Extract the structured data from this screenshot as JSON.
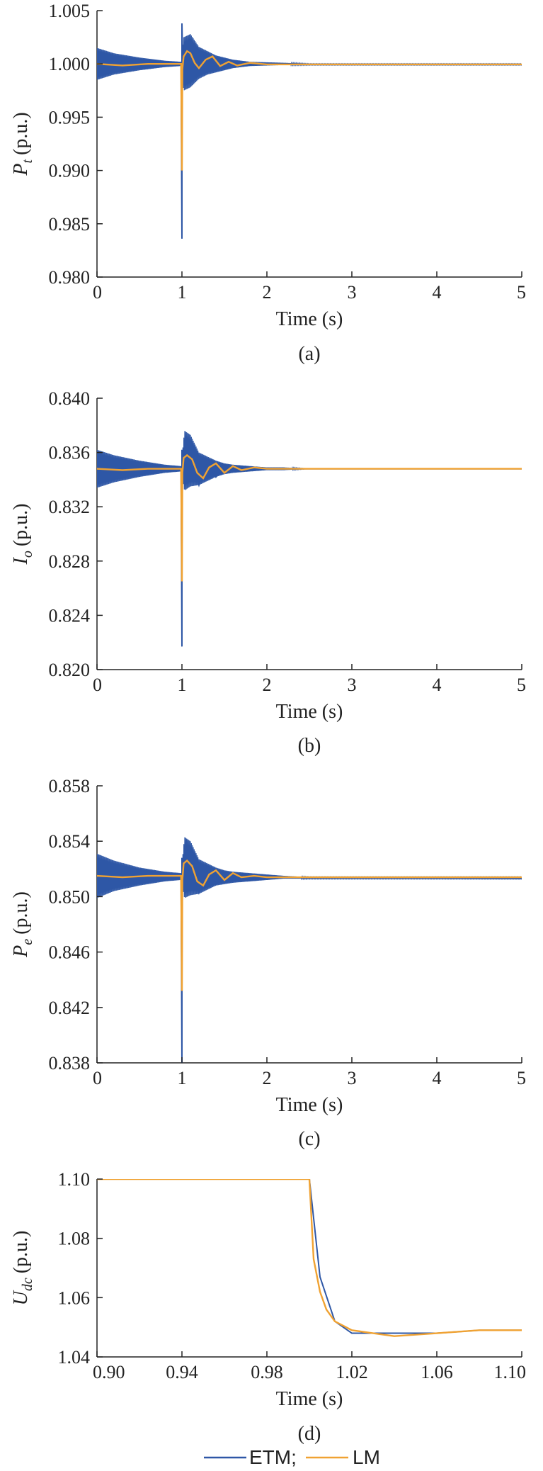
{
  "colors": {
    "etm": "#2E57A6",
    "lm": "#F0A232"
  },
  "legend": {
    "items": [
      {
        "label": "ETM;",
        "color": "#2E57A6"
      },
      {
        "label": "LM",
        "color": "#F0A232"
      }
    ]
  },
  "chart_data": [
    {
      "type": "line",
      "caption": "(a)",
      "xlabel": "Time (s)",
      "ylabel_symbol": "P",
      "ylabel_subscript": "t",
      "ylabel_unit": "(p.u.)",
      "xlim": [
        0,
        5
      ],
      "ylim": [
        0.98,
        1.005
      ],
      "xticks": [
        "0",
        "1",
        "2",
        "3",
        "4",
        "5"
      ],
      "yticks": [
        "0.980",
        "0.985",
        "0.990",
        "0.995",
        "1.000",
        "1.005"
      ],
      "grid": false,
      "series": [
        {
          "name": "ETM",
          "x": [
            0,
            0.2,
            0.5,
            0.8,
            0.99,
            1.0,
            1.0,
            1.01,
            1.04,
            1.1,
            1.2,
            1.3,
            1.4,
            1.5,
            1.6,
            1.7,
            1.8,
            2.0,
            2.5,
            3.0,
            5.0
          ],
          "y": [
            1.0,
            1.0,
            0.99985,
            0.9999,
            0.99995,
            0.9836,
            1.0038,
            0.9995,
            1.0003,
            1.0007,
            0.9995,
            1.0004,
            0.9998,
            1.0001,
            0.99985,
            1.00005,
            0.99995,
            1.0,
            0.99995,
            0.99995,
            0.99995
          ],
          "envelope_x": [
            0,
            0.2,
            0.5,
            0.8,
            0.99,
            1.02,
            1.1,
            1.2,
            1.3,
            1.4,
            1.5,
            1.6,
            1.8,
            2.0,
            2.2,
            2.5,
            5.0
          ],
          "envelope_upper": [
            1.0015,
            1.001,
            1.0006,
            1.0003,
            1.0002,
            1.0025,
            1.0028,
            1.0016,
            1.0012,
            1.0008,
            1.0006,
            1.0004,
            1.0002,
            1.00015,
            1.0001,
            1.0,
            1.0
          ],
          "envelope_lower": [
            0.9985,
            0.999,
            0.9994,
            0.9997,
            0.9998,
            0.9975,
            0.9978,
            0.9986,
            0.999,
            0.9992,
            0.9994,
            0.9996,
            0.9998,
            0.99985,
            0.9999,
            0.9999,
            0.9999
          ]
        },
        {
          "name": "LM",
          "x": [
            0,
            0.3,
            0.6,
            0.99,
            1.0,
            1.005,
            1.02,
            1.06,
            1.1,
            1.15,
            1.2,
            1.28,
            1.36,
            1.45,
            1.55,
            1.65,
            1.8,
            2.0,
            2.5,
            5.0
          ],
          "y": [
            1.0,
            0.99985,
            1.0,
            1.0,
            0.99,
            0.9995,
            1.0007,
            1.0012,
            1.001,
            1.0001,
            0.9996,
            1.0004,
            1.0007,
            0.9998,
            1.0002,
            0.99985,
            1.0001,
            0.99995,
            0.99995,
            0.99995
          ]
        }
      ]
    },
    {
      "type": "line",
      "caption": "(b)",
      "xlabel": "Time (s)",
      "ylabel_symbol": "I",
      "ylabel_subscript": "o",
      "ylabel_unit": "(p.u.)",
      "xlim": [
        0,
        5
      ],
      "ylim": [
        0.82,
        0.84
      ],
      "xticks": [
        "0",
        "1",
        "2",
        "3",
        "4",
        "5"
      ],
      "yticks": [
        "0.820",
        "0.824",
        "0.828",
        "0.832",
        "0.836",
        "0.840"
      ],
      "grid": false,
      "series": [
        {
          "name": "ETM",
          "x": [
            0,
            0.3,
            0.6,
            0.99,
            1.0,
            1.0,
            1.01,
            1.05,
            1.1,
            1.2,
            1.3,
            1.4,
            1.5,
            1.6,
            1.8,
            2.0,
            2.5,
            5.0
          ],
          "y": [
            0.8348,
            0.8347,
            0.8348,
            0.8348,
            0.8217,
            0.8362,
            0.8347,
            0.8372,
            0.8355,
            0.8336,
            0.8355,
            0.8342,
            0.835,
            0.8346,
            0.8349,
            0.8348,
            0.8348,
            0.8348
          ],
          "envelope_x": [
            0,
            0.2,
            0.5,
            0.8,
            0.99,
            1.03,
            1.1,
            1.2,
            1.3,
            1.4,
            1.5,
            1.6,
            1.8,
            2.0,
            2.2,
            2.5,
            5.0
          ],
          "envelope_upper": [
            0.8362,
            0.8358,
            0.8354,
            0.8351,
            0.835,
            0.8376,
            0.8373,
            0.836,
            0.8357,
            0.8354,
            0.8352,
            0.8351,
            0.835,
            0.8349,
            0.8349,
            0.8348,
            0.8348
          ],
          "envelope_lower": [
            0.8334,
            0.8338,
            0.8342,
            0.8345,
            0.8346,
            0.8332,
            0.8335,
            0.8336,
            0.8339,
            0.8342,
            0.8344,
            0.8345,
            0.8346,
            0.8347,
            0.8347,
            0.8348,
            0.8348
          ]
        },
        {
          "name": "LM",
          "x": [
            0,
            0.3,
            0.6,
            0.99,
            1.0,
            1.005,
            1.02,
            1.06,
            1.12,
            1.18,
            1.25,
            1.32,
            1.4,
            1.5,
            1.6,
            1.7,
            1.85,
            2.0,
            5.0
          ],
          "y": [
            0.8348,
            0.8347,
            0.8348,
            0.8348,
            0.8265,
            0.8345,
            0.8356,
            0.8358,
            0.8355,
            0.8345,
            0.8341,
            0.8349,
            0.8352,
            0.8345,
            0.835,
            0.8347,
            0.8349,
            0.8348,
            0.8348
          ]
        }
      ]
    },
    {
      "type": "line",
      "caption": "(c)",
      "xlabel": "Time (s)",
      "ylabel_symbol": "P",
      "ylabel_subscript": "e",
      "ylabel_unit": "(p.u.)",
      "xlim": [
        0,
        5
      ],
      "ylim": [
        0.838,
        0.858
      ],
      "xticks": [
        "0",
        "1",
        "2",
        "3",
        "4",
        "5"
      ],
      "yticks": [
        "0.838",
        "0.842",
        "0.846",
        "0.850",
        "0.854",
        "0.858"
      ],
      "grid": false,
      "series": [
        {
          "name": "ETM",
          "x": [
            0,
            0.3,
            0.6,
            0.99,
            1.0,
            1.0,
            1.01,
            1.05,
            1.1,
            1.2,
            1.3,
            1.4,
            1.5,
            1.6,
            1.8,
            2.0,
            2.5,
            5.0
          ],
          "y": [
            0.8515,
            0.8514,
            0.8515,
            0.8515,
            0.838,
            0.8528,
            0.8513,
            0.8541,
            0.8525,
            0.8503,
            0.8522,
            0.8509,
            0.8518,
            0.8512,
            0.8516,
            0.8514,
            0.8514,
            0.8513
          ],
          "envelope_x": [
            0,
            0.2,
            0.5,
            0.8,
            0.99,
            1.03,
            1.1,
            1.2,
            1.3,
            1.4,
            1.5,
            1.6,
            1.8,
            2.0,
            2.2,
            2.5,
            5.0
          ],
          "envelope_upper": [
            0.8531,
            0.8526,
            0.8521,
            0.8518,
            0.8517,
            0.8543,
            0.854,
            0.8527,
            0.8524,
            0.8521,
            0.8519,
            0.8518,
            0.8517,
            0.8516,
            0.8515,
            0.8514,
            0.8514
          ],
          "envelope_lower": [
            0.8499,
            0.8504,
            0.8508,
            0.8511,
            0.8512,
            0.8499,
            0.8501,
            0.8502,
            0.8505,
            0.8508,
            0.8509,
            0.851,
            0.8511,
            0.8512,
            0.8513,
            0.8513,
            0.8513
          ]
        },
        {
          "name": "LM",
          "x": [
            0,
            0.3,
            0.6,
            0.99,
            1.0,
            1.005,
            1.02,
            1.06,
            1.12,
            1.18,
            1.25,
            1.32,
            1.4,
            1.5,
            1.6,
            1.7,
            1.85,
            2.0,
            5.0
          ],
          "y": [
            0.8515,
            0.8514,
            0.8515,
            0.8515,
            0.8432,
            0.8512,
            0.8524,
            0.8526,
            0.8522,
            0.8511,
            0.8508,
            0.8516,
            0.8519,
            0.8512,
            0.8517,
            0.8514,
            0.8515,
            0.8514,
            0.8514
          ]
        }
      ]
    },
    {
      "type": "line",
      "caption": "(d)",
      "xlabel": "Time (s)",
      "ylabel_symbol": "U",
      "ylabel_subscript": "dc",
      "ylabel_unit": "(p.u.)",
      "xlim": [
        0.9,
        1.1
      ],
      "ylim": [
        1.04,
        1.1
      ],
      "xticks": [
        "0.90",
        "0.94",
        "0.98",
        "1.02",
        "1.06",
        "1.10"
      ],
      "yticks": [
        "1.04",
        "1.06",
        "1.08",
        "1.10"
      ],
      "grid": false,
      "series": [
        {
          "name": "ETM",
          "x": [
            0.9,
            1.0,
            1.005,
            1.012,
            1.02,
            1.03,
            1.04,
            1.06,
            1.08,
            1.1
          ],
          "y": [
            1.1,
            1.1,
            1.067,
            1.052,
            1.048,
            1.048,
            1.048,
            1.048,
            1.049,
            1.049
          ],
          "envelope_x": [],
          "envelope_upper": [],
          "envelope_lower": []
        },
        {
          "name": "LM",
          "x": [
            0.9,
            1.0,
            1.002,
            1.005,
            1.008,
            1.012,
            1.02,
            1.03,
            1.04,
            1.06,
            1.08,
            1.1
          ],
          "y": [
            1.1,
            1.1,
            1.073,
            1.062,
            1.056,
            1.052,
            1.049,
            1.048,
            1.047,
            1.048,
            1.049,
            1.049
          ]
        }
      ]
    }
  ]
}
